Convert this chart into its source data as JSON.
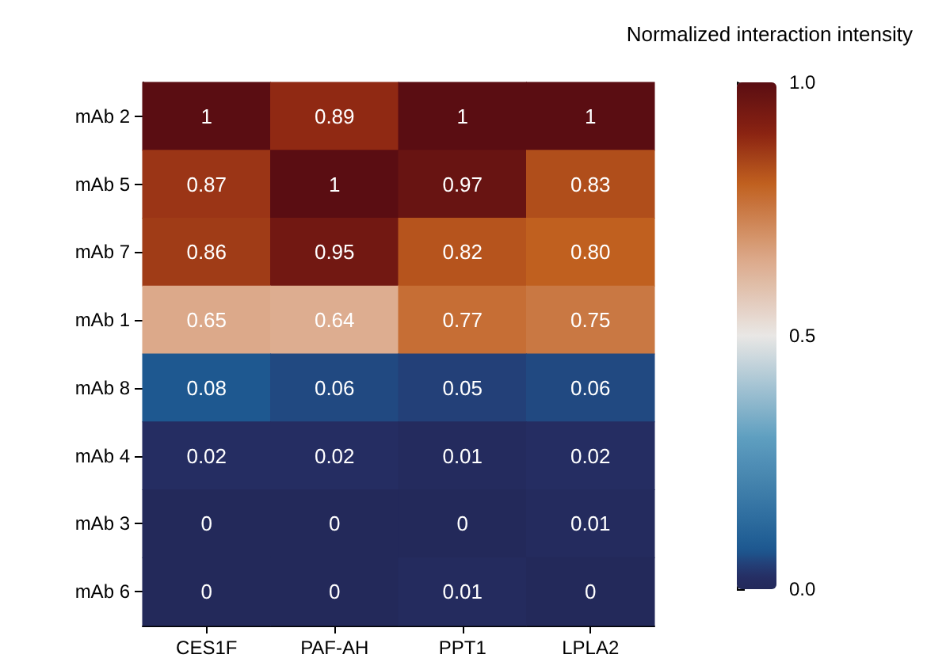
{
  "chart_data": {
    "type": "heatmap",
    "clabel": "Normalized interaction intensity",
    "categories": [
      "CES1F",
      "PAF-AH",
      "PPT1",
      "LPLA2"
    ],
    "y_categories": [
      "mAb 2",
      "mAb 5",
      "mAb 7",
      "mAb 1",
      "mAb 8",
      "mAb 4",
      "mAb 3",
      "mAb 6"
    ],
    "cells": [
      [
        1,
        0.89,
        1,
        1
      ],
      [
        0.87,
        1,
        0.97,
        0.83
      ],
      [
        0.86,
        0.95,
        0.82,
        0.8
      ],
      [
        0.65,
        0.64,
        0.77,
        0.75
      ],
      [
        0.08,
        0.06,
        0.05,
        0.06
      ],
      [
        0.02,
        0.02,
        0.01,
        0.02
      ],
      [
        0,
        0,
        0,
        0.01
      ],
      [
        0,
        0,
        0.01,
        0
      ]
    ],
    "cell_labels": [
      [
        "1",
        "0.89",
        "1",
        "1"
      ],
      [
        "0.87",
        "1",
        "0.97",
        "0.83"
      ],
      [
        "0.86",
        "0.95",
        "0.82",
        "0.80"
      ],
      [
        "0.65",
        "0.64",
        "0.77",
        "0.75"
      ],
      [
        "0.08",
        "0.06",
        "0.05",
        "0.06"
      ],
      [
        "0.02",
        "0.02",
        "0.01",
        "0.02"
      ],
      [
        "0",
        "0",
        "0",
        "0.01"
      ],
      [
        "0",
        "0",
        "0.01",
        "0"
      ]
    ],
    "clim": [
      0,
      1
    ],
    "cticks": [
      {
        "value": 0,
        "label": "0.0"
      },
      {
        "value": 0.5,
        "label": "0.5"
      },
      {
        "value": 1,
        "label": "1.0"
      }
    ]
  }
}
